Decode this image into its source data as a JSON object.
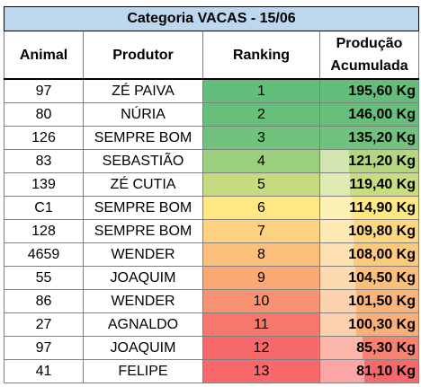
{
  "title": "Categoria VACAS - 15/06",
  "columns": {
    "animal": "Animal",
    "produtor": "Produtor",
    "ranking": "Ranking",
    "producao_line1": "Produção",
    "producao_line2": "Acumulada"
  },
  "rows": [
    {
      "animal": "97",
      "produtor": "ZÉ PAIVA",
      "ranking": "1",
      "producao": "195,60 Kg",
      "producao_kg": 195.6,
      "rank_color": "#63be7b",
      "prod_color": "#63be7b"
    },
    {
      "animal": "80",
      "produtor": "NÚRIA",
      "ranking": "2",
      "producao": "146,00 Kg",
      "producao_kg": 146.0,
      "rank_color": "#66c07c",
      "prod_color": "#66c07c"
    },
    {
      "animal": "126",
      "produtor": "SEMPRE BOM",
      "ranking": "3",
      "producao": "135,20 Kg",
      "producao_kg": 135.2,
      "rank_color": "#70c27c",
      "prod_color": "#70c27c"
    },
    {
      "animal": "83",
      "produtor": "SEBASTIÃO",
      "ranking": "4",
      "producao": "121,20 Kg",
      "producao_kg": 121.2,
      "rank_color": "#9ccf7d",
      "prod_color": "#b5d67e"
    },
    {
      "animal": "139",
      "produtor": "ZÉ CUTIA",
      "ranking": "5",
      "producao": "119,40 Kg",
      "producao_kg": 119.4,
      "rank_color": "#c5db7f",
      "prod_color": "#c9dd80"
    },
    {
      "animal": "C1",
      "produtor": "SEMPRE BOM",
      "ranking": "6",
      "producao": "114,90 Kg",
      "producao_kg": 114.9,
      "rank_color": "#fde883",
      "prod_color": "#fde883"
    },
    {
      "animal": "128",
      "produtor": "SEMPRE BOM",
      "ranking": "7",
      "producao": "109,80 Kg",
      "producao_kg": 109.8,
      "rank_color": "#fdd17f",
      "prod_color": "#fdd880"
    },
    {
      "animal": "4659",
      "produtor": "WENDER",
      "ranking": "8",
      "producao": "108,00 Kg",
      "producao_kg": 108.0,
      "rank_color": "#fcbf7b",
      "prod_color": "#fcca7d"
    },
    {
      "animal": "55",
      "produtor": "JOAQUIM",
      "ranking": "9",
      "producao": "104,50 Kg",
      "producao_kg": 104.5,
      "rank_color": "#fba877",
      "prod_color": "#fcbf7b"
    },
    {
      "animal": "86",
      "produtor": "WENDER",
      "ranking": "10",
      "producao": "101,50 Kg",
      "producao_kg": 101.5,
      "rank_color": "#f99273",
      "prod_color": "#fbb479"
    },
    {
      "animal": "27",
      "produtor": "AGNALDO",
      "ranking": "11",
      "producao": "100,30 Kg",
      "producao_kg": 100.3,
      "rank_color": "#f8776d",
      "prod_color": "#fbaf78"
    },
    {
      "animal": "97",
      "produtor": "JOAQUIM",
      "ranking": "12",
      "producao": "85,30 Kg",
      "producao_kg": 85.3,
      "rank_color": "#f8696b",
      "prod_color": "#f98370"
    },
    {
      "animal": "41",
      "produtor": "FELIPE",
      "ranking": "13",
      "producao": "81,10 Kg",
      "producao_kg": 81.1,
      "rank_color": "#f8696b",
      "prod_color": "#f8696b"
    }
  ]
}
